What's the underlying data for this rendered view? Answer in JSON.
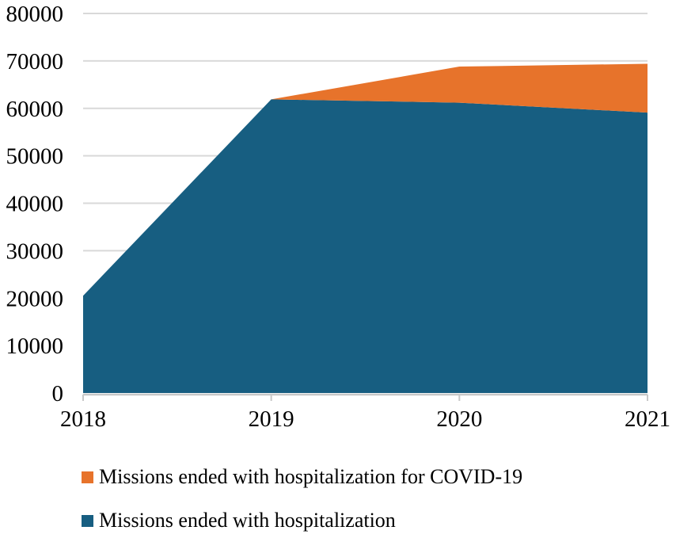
{
  "figure": {
    "background": "#ffffff",
    "text_color": "#000000"
  },
  "chart_data": {
    "type": "area",
    "stacked": true,
    "title": "",
    "xlabel": "",
    "ylabel": "",
    "categories": [
      "2018",
      "2019",
      "2020",
      "2021"
    ],
    "series": [
      {
        "name": "Missions ended with hospitalization",
        "color": "#175E81",
        "values": [
          20500,
          61900,
          61200,
          59100
        ]
      },
      {
        "name": "Missions ended with hospitalization for COVID-19",
        "color": "#E7732B",
        "values": [
          0,
          0,
          7600,
          10300
        ]
      }
    ],
    "stacked_totals": [
      20500,
      61900,
      68800,
      69400
    ],
    "ylim": [
      0,
      80000
    ],
    "yticks": [
      0,
      10000,
      20000,
      30000,
      40000,
      50000,
      60000,
      70000,
      80000
    ],
    "ytick_labels": [
      "0",
      "10000",
      "20000",
      "30000",
      "40000",
      "50000",
      "60000",
      "70000",
      "80000"
    ],
    "grid": true,
    "gridline_color": "#d9d9d9",
    "axis_line_color": "#c8c8c8",
    "tick_color": "#c8c8c8",
    "legend_position": "bottom-left",
    "legend": [
      {
        "label": "Missions ended with hospitalization for COVID-19",
        "color": "#E7732B",
        "swatch": "square-icon"
      },
      {
        "label": "Missions ended with hospitalization",
        "color": "#175E81",
        "swatch": "square-icon"
      }
    ]
  }
}
